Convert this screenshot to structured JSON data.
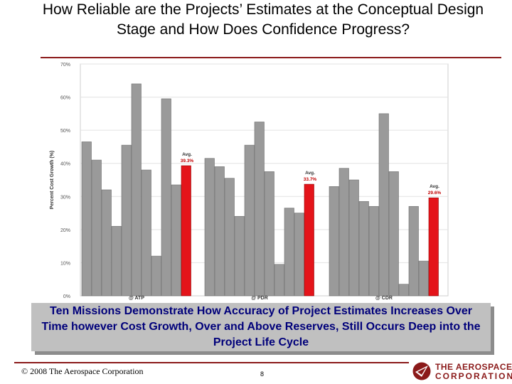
{
  "slide": {
    "title": "How Reliable are the Projects’ Estimates at the Conceptual Design Stage and How Does Confidence Progress?",
    "callout": "Ten Missions Demonstrate How Accuracy of Project Estimates Increases Over Time however Cost Growth, Over and Above Reserves, Still Occurs Deep into the Project Life Cycle",
    "copyright": "© 2008 The Aerospace Corporation",
    "page_number": "8",
    "logo": {
      "line1": "THE AEROSPACE",
      "line2": "CORPORATION",
      "icon": "aerospace-logo-icon"
    }
  },
  "colors": {
    "bar": "#9a9a9a",
    "avg_bar": "#e4141a",
    "avg_label": "#c00000",
    "accent": "#8b1a1a",
    "callout_text": "#00007a"
  },
  "chart_data": {
    "type": "bar",
    "ylabel": "Percent Cost Growth (%)",
    "ylim": [
      0,
      70
    ],
    "yticks": [
      "0%",
      "10%",
      "20%",
      "30%",
      "40%",
      "50%",
      "60%",
      "70%"
    ],
    "groups": [
      {
        "label": "@ ATP",
        "values": [
          46.5,
          41,
          32,
          21,
          45.5,
          64,
          38,
          12,
          59.5,
          33.5
        ],
        "avg": 39.3,
        "avg_label": [
          "Avg.",
          "39.3%"
        ]
      },
      {
        "label": "@ PDR",
        "values": [
          41.5,
          39,
          35.5,
          24,
          45.5,
          52.5,
          37.5,
          9.5,
          26.5,
          25
        ],
        "avg": 33.7,
        "avg_label": [
          "Avg.",
          "33.7%"
        ]
      },
      {
        "label": "@ CDR",
        "values": [
          33,
          38.5,
          35,
          28.5,
          27,
          55,
          37.5,
          3.5,
          27,
          10.5
        ],
        "avg": 29.6,
        "avg_label": [
          "Avg.",
          "29.6%"
        ]
      }
    ]
  }
}
